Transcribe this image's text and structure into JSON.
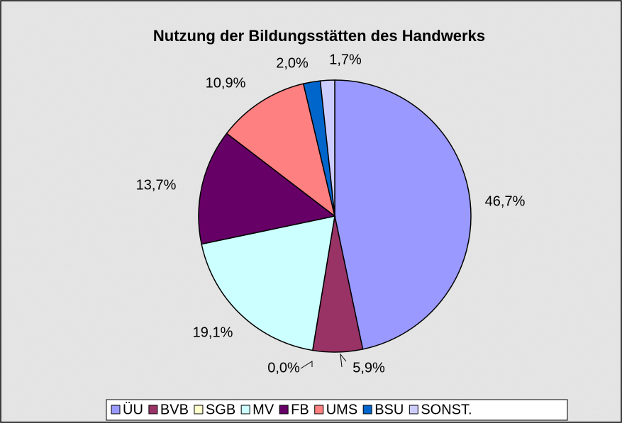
{
  "chart_data": {
    "type": "pie",
    "title": "Nutzung der Bildungsstätten des Handwerks",
    "categories": [
      "ÜU",
      "BVB",
      "SGB",
      "MV",
      "FB",
      "UMS",
      "BSU",
      "SONST."
    ],
    "values": [
      46.7,
      5.9,
      0.0,
      19.1,
      13.7,
      10.9,
      2.0,
      1.7
    ],
    "value_labels": [
      "46,7%",
      "5,9%",
      "0,0%",
      "19,1%",
      "13,7%",
      "10,9%",
      "2,0%",
      "1,7%"
    ],
    "colors": [
      "#9999ff",
      "#993366",
      "#ffffcc",
      "#ccffff",
      "#660066",
      "#ff8080",
      "#0066cc",
      "#ccccff"
    ],
    "legend": "bottom"
  }
}
